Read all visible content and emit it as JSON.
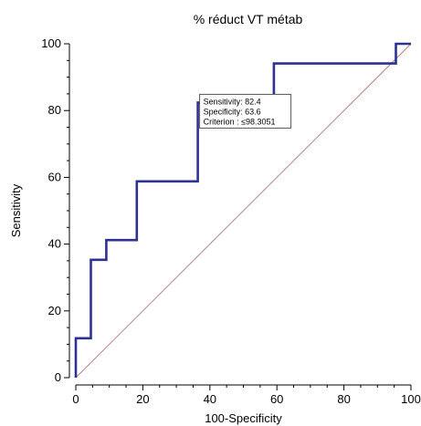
{
  "chart_data": {
    "type": "line",
    "title": "% réduct VT métab",
    "xlabel": "100-Specificity",
    "ylabel": "Sensitivity",
    "xlim": [
      0,
      100
    ],
    "ylim": [
      0,
      100
    ],
    "x_ticks": [
      "0",
      "20",
      "40",
      "60",
      "80",
      "100"
    ],
    "y_ticks": [
      "0",
      "20",
      "40",
      "60",
      "80",
      "100"
    ],
    "grid": false,
    "series": [
      {
        "role": "roc-curve",
        "color": "#2e3192",
        "x": [
          0,
          0,
          4.5,
          4.5,
          9.1,
          9.1,
          18.2,
          18.2,
          36.4,
          36.4,
          59.1,
          59.1,
          95.5,
          95.5,
          100
        ],
        "y": [
          0,
          11.8,
          11.8,
          35.3,
          35.3,
          41.2,
          41.2,
          58.8,
          58.8,
          82.4,
          82.4,
          94.1,
          94.1,
          100,
          100
        ]
      },
      {
        "role": "diagonal-reference",
        "color": "#b07a7a",
        "x": [
          0,
          100
        ],
        "y": [
          0,
          100
        ]
      }
    ],
    "annotation": {
      "lines": [
        "Sensitivity: 82.4",
        "Specificity: 63.6",
        "Criterion : ≤98.3051"
      ],
      "anchor": [
        36.4,
        82.4
      ]
    }
  }
}
